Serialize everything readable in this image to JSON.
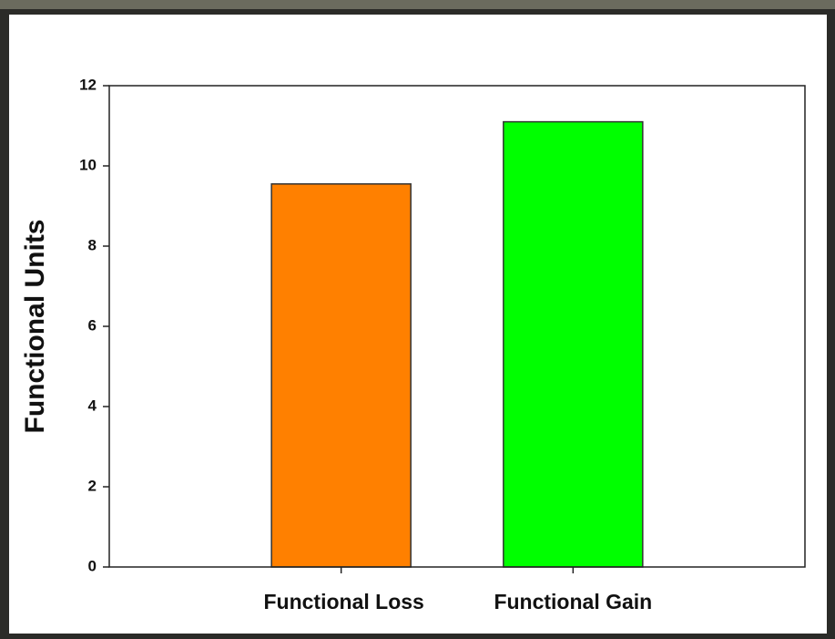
{
  "chart_data": {
    "type": "bar",
    "y_label": "Functional Units",
    "categories": [
      "Functional Loss",
      "Functional Gain"
    ],
    "values": [
      9.55,
      11.1
    ],
    "colors": [
      "#ff8000",
      "#00ff00"
    ],
    "ylim": [
      0,
      12
    ],
    "yticks": [
      0,
      2,
      4,
      6,
      8,
      10,
      12
    ],
    "grid": false
  }
}
